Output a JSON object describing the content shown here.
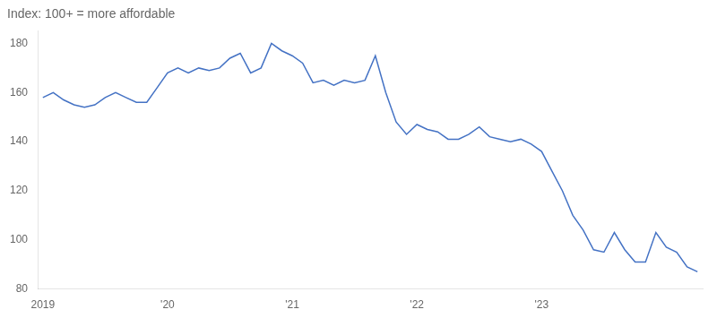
{
  "chart_data": {
    "type": "line",
    "title": "Index: 100+ = more affordable",
    "categories": [
      "2019",
      null,
      null,
      null,
      null,
      null,
      null,
      null,
      null,
      null,
      null,
      null,
      "'20",
      null,
      null,
      null,
      null,
      null,
      null,
      null,
      null,
      null,
      null,
      null,
      "'21",
      null,
      null,
      null,
      null,
      null,
      null,
      null,
      null,
      null,
      null,
      null,
      "'22",
      null,
      null,
      null,
      null,
      null,
      null,
      null,
      null,
      null,
      null,
      null,
      "'23",
      null,
      null,
      null,
      null,
      null,
      null,
      null,
      null,
      null,
      null,
      null,
      null,
      null,
      null,
      null
    ],
    "values": [
      158,
      160,
      157,
      155,
      154,
      155,
      158,
      160,
      158,
      156,
      156,
      162,
      168,
      170,
      168,
      170,
      169,
      170,
      174,
      176,
      168,
      170,
      180,
      177,
      175,
      172,
      164,
      165,
      163,
      165,
      164,
      165,
      175,
      160,
      148,
      143,
      147,
      145,
      144,
      141,
      141,
      143,
      146,
      142,
      141,
      140,
      141,
      139,
      136,
      128,
      120,
      110,
      104,
      96,
      95,
      103,
      96,
      91,
      91,
      103,
      97,
      95,
      89,
      87
    ],
    "color": "#4472C4",
    "ylim": [
      80,
      185
    ],
    "yticks": [
      80,
      100,
      120,
      140,
      160,
      180
    ],
    "grid": false
  }
}
